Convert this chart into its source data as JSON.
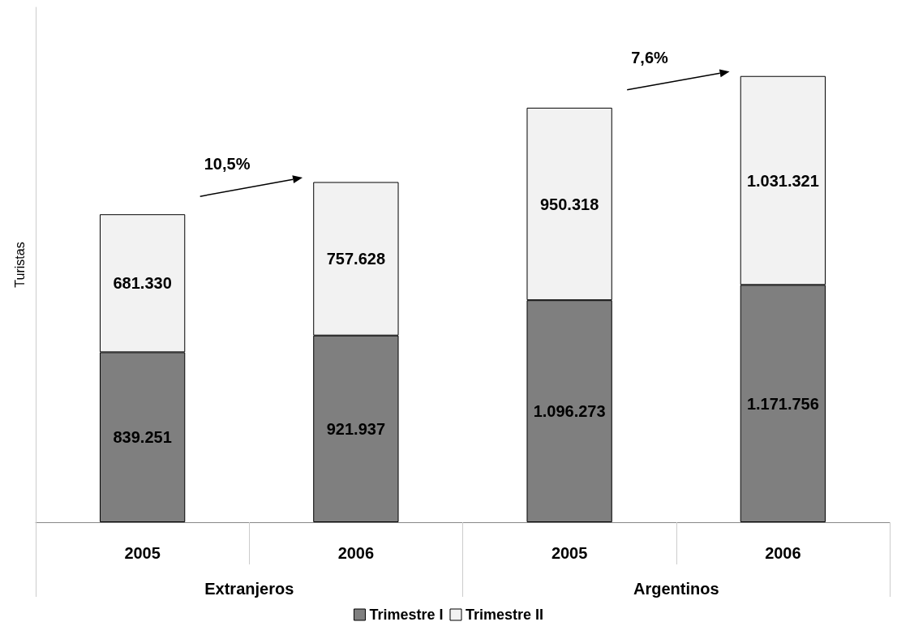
{
  "chart_data": {
    "type": "bar",
    "stacked": true,
    "ylabel": "Turistas",
    "categories": [
      "2005",
      "2006",
      "2005",
      "2006"
    ],
    "series": [
      {
        "name": "Trimestre I",
        "color": "#7f7f7f",
        "values": [
          839251,
          921937,
          1096273,
          1171756
        ],
        "value_labels": [
          "839.251",
          "921.937",
          "1.096.273",
          "1.171.756"
        ]
      },
      {
        "name": "Trimestre II",
        "color": "#f2f2f2",
        "values": [
          681330,
          757628,
          950318,
          1031321
        ],
        "value_labels": [
          "681.330",
          "757.628",
          "950.318",
          "1.031.321"
        ]
      }
    ],
    "annotations": [
      "10,5%",
      "7,6%",
      "Extranjeros",
      "Argentinos"
    ],
    "legend": "bottom",
    "grid": false
  }
}
